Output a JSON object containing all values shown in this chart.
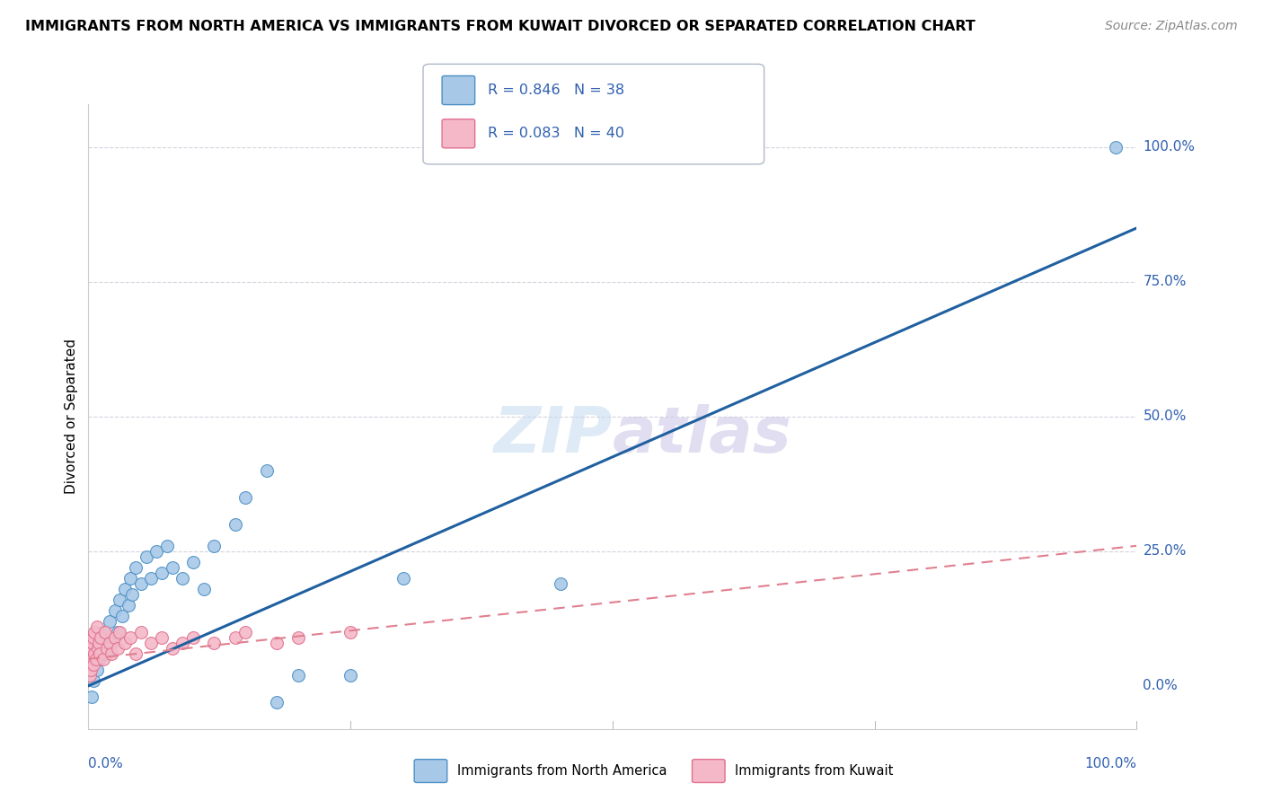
{
  "title": "IMMIGRANTS FROM NORTH AMERICA VS IMMIGRANTS FROM KUWAIT DIVORCED OR SEPARATED CORRELATION CHART",
  "source": "Source: ZipAtlas.com",
  "ylabel": "Divorced or Separated",
  "watermark": "ZIPatlas",
  "legend_label1": "Immigrants from North America",
  "legend_label2": "Immigrants from Kuwait",
  "blue_fill": "#a8c8e8",
  "blue_edge": "#4a90c4",
  "pink_fill": "#f4b8c8",
  "pink_edge": "#e07090",
  "blue_line_color": "#2060a0",
  "pink_line_color": "#e08090",
  "text_color": "#3060b0",
  "grid_color": "#c8c8d8",
  "background_color": "#ffffff",
  "xlim": [
    0,
    100
  ],
  "ylim": [
    -8,
    108
  ],
  "ytick_positions": [
    0,
    25,
    50,
    75,
    100
  ],
  "ytick_labels": [
    "0.0%",
    "25.0%",
    "50.0%",
    "75.0%",
    "100.0%"
  ],
  "blue_trend": [
    0,
    0,
    100,
    85
  ],
  "pink_trend": [
    0,
    5,
    100,
    26
  ],
  "blue_x": [
    0.3,
    0.5,
    0.8,
    1.0,
    1.2,
    1.5,
    1.8,
    2.0,
    2.2,
    2.5,
    2.8,
    3.0,
    3.2,
    3.5,
    3.8,
    4.0,
    4.2,
    4.5,
    5.0,
    5.5,
    6.0,
    6.5,
    7.0,
    7.5,
    8.0,
    9.0,
    10.0,
    11.0,
    12.0,
    14.0,
    15.0,
    17.0,
    18.0,
    20.0,
    25.0,
    30.0,
    45.0,
    98.0
  ],
  "blue_y": [
    -2.0,
    1.0,
    3.0,
    5.0,
    8.0,
    10.0,
    6.0,
    12.0,
    8.0,
    14.0,
    10.0,
    16.0,
    13.0,
    18.0,
    15.0,
    20.0,
    17.0,
    22.0,
    19.0,
    24.0,
    20.0,
    25.0,
    21.0,
    26.0,
    22.0,
    20.0,
    23.0,
    18.0,
    26.0,
    30.0,
    35.0,
    40.0,
    -3.0,
    2.0,
    2.0,
    20.0,
    19.0,
    100.0
  ],
  "pink_x": [
    0.1,
    0.15,
    0.2,
    0.25,
    0.3,
    0.35,
    0.4,
    0.45,
    0.5,
    0.55,
    0.6,
    0.7,
    0.8,
    0.9,
    1.0,
    1.1,
    1.2,
    1.4,
    1.6,
    1.8,
    2.0,
    2.2,
    2.5,
    2.8,
    3.0,
    3.5,
    4.0,
    4.5,
    5.0,
    6.0,
    7.0,
    8.0,
    9.0,
    10.0,
    12.0,
    14.0,
    15.0,
    18.0,
    20.0,
    25.0
  ],
  "pink_y": [
    2.0,
    4.0,
    6.0,
    3.0,
    7.0,
    5.0,
    8.0,
    4.0,
    9.0,
    6.0,
    10.0,
    5.0,
    11.0,
    7.0,
    8.0,
    6.0,
    9.0,
    5.0,
    10.0,
    7.0,
    8.0,
    6.0,
    9.0,
    7.0,
    10.0,
    8.0,
    9.0,
    6.0,
    10.0,
    8.0,
    9.0,
    7.0,
    8.0,
    9.0,
    8.0,
    9.0,
    10.0,
    8.0,
    9.0,
    10.0
  ]
}
